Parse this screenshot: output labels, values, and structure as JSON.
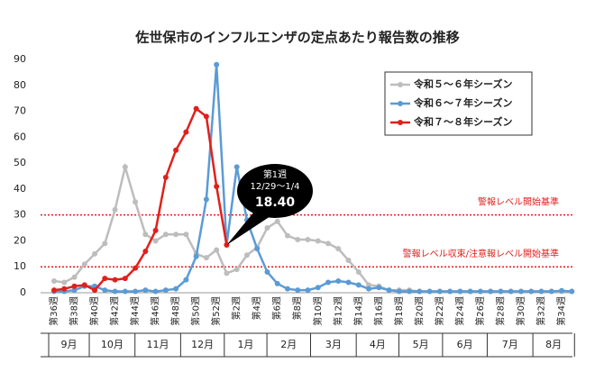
{
  "chart_data": {
    "type": "line",
    "title": "佐世保市のインフルエンザの定点あたり報告数の推移",
    "categories": [
      "第36週",
      null,
      "第38週",
      null,
      "第40週",
      null,
      "第42週",
      null,
      "第44週",
      null,
      "第46週",
      null,
      "第48週",
      null,
      "第50週",
      null,
      "第52週",
      null,
      "第2週",
      null,
      "第4週",
      null,
      "第6週",
      null,
      "第8週",
      null,
      "第10週",
      null,
      "第12週",
      null,
      "第14週",
      null,
      "第16週",
      null,
      "第18週",
      null,
      "第20週",
      null,
      "第22週",
      null,
      "第24週",
      null,
      "第26週",
      null,
      "第28週",
      null,
      "第30週",
      null,
      "第32週",
      null,
      "第34週",
      null
    ],
    "months": [
      "9月",
      "10月",
      "11月",
      "12月",
      "1月",
      "2月",
      "3月",
      "4月",
      "5月",
      "6月",
      "7月",
      "8月"
    ],
    "series": [
      {
        "name": "令和５～６年シーズン",
        "color": "#bdbdbd",
        "values": [
          4.5,
          4,
          6,
          11,
          15,
          19,
          32,
          48.5,
          35,
          22.5,
          20,
          22.5,
          22.5,
          22.5,
          15,
          13.5,
          16.5,
          7.5,
          9,
          14.5,
          17.5,
          25,
          27.5,
          22,
          20.5,
          20.5,
          20,
          19,
          17,
          12.5,
          8,
          3,
          2.5,
          1,
          1,
          1,
          0.5,
          0.5,
          0.5,
          0.5,
          0.5,
          0.5,
          0.5,
          0.5,
          0.5,
          0.5,
          0.5,
          0.5,
          0.5,
          0.5,
          0.5,
          0.5
        ]
      },
      {
        "name": "令和６～７年シーズン",
        "color": "#5b9bd5",
        "values": [
          0.5,
          0.5,
          1,
          2.5,
          2.5,
          1,
          0.5,
          0.5,
          0.5,
          1,
          0.5,
          1,
          1.5,
          5,
          14,
          36,
          88,
          18.5,
          48.5,
          28,
          17,
          8,
          3.5,
          1.5,
          1,
          1,
          2,
          4,
          4.5,
          4,
          3,
          1.5,
          2,
          1,
          0.5,
          0.5,
          0.5,
          0.5,
          0.5,
          0.5,
          0.5,
          0.5,
          0.5,
          0.5,
          0.5,
          0.5,
          0.5,
          0.5,
          0.5,
          0.5,
          0.8,
          0.5
        ]
      },
      {
        "name": "令和７～８年シーズン",
        "color": "#e0201b",
        "values": [
          1,
          1.5,
          2.5,
          3,
          1,
          5.5,
          5,
          5.5,
          9.5,
          16,
          24,
          44.5,
          55,
          62,
          71,
          68,
          41,
          18.4,
          null,
          null,
          null,
          null,
          null,
          null,
          null,
          null,
          null,
          null,
          null,
          null,
          null,
          null,
          null,
          null,
          null,
          null,
          null,
          null,
          null,
          null,
          null,
          null,
          null,
          null,
          null,
          null,
          null,
          null,
          null,
          null,
          null,
          null
        ]
      }
    ],
    "ylim": [
      0,
      90
    ],
    "yticks": [
      0,
      10,
      20,
      30,
      40,
      50,
      60,
      70,
      80,
      90
    ],
    "reference_lines": [
      {
        "value": 30,
        "label": "警報レベル開始基準"
      },
      {
        "value": 10,
        "label": "警報レベル収束/注意報レベル開始基準"
      }
    ],
    "callout": {
      "week": "第1週",
      "range": "12/29～1/4",
      "value_label": "18.40",
      "series": 2,
      "index": 17
    }
  }
}
